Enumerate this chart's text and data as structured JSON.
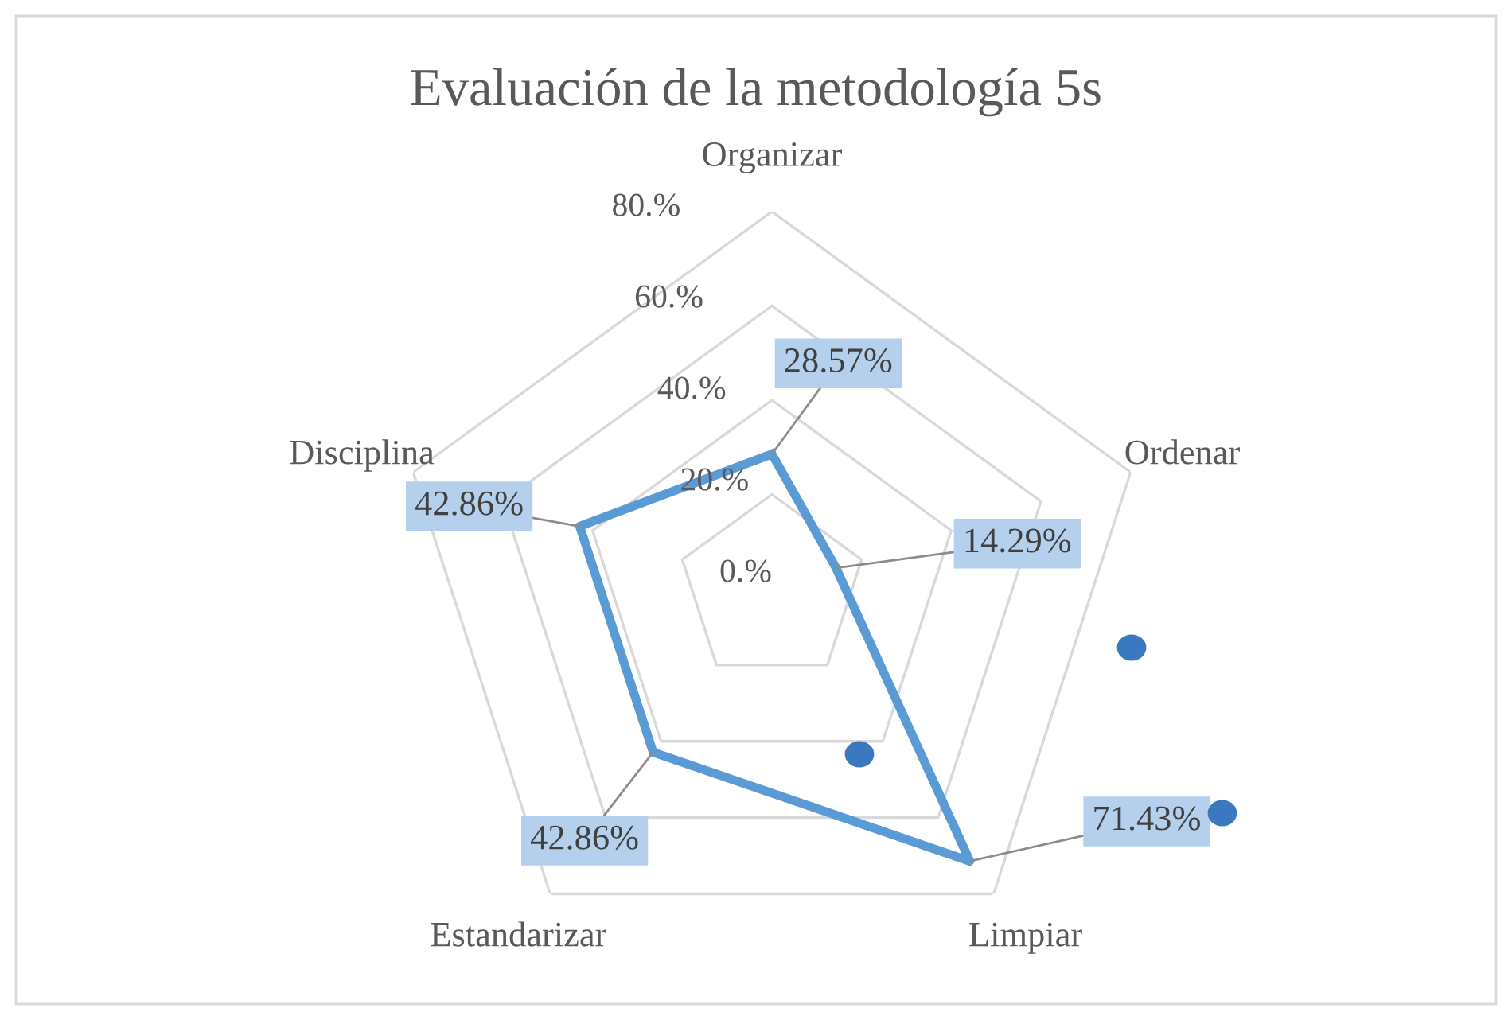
{
  "chart_data": {
    "type": "radar",
    "title": "Evaluación de la metodología 5s",
    "categories": [
      "Organizar",
      "Ordenar",
      "Limpiar",
      "Estandarizar",
      "Disciplina"
    ],
    "series": [
      {
        "color": "#5b9bd5",
        "values": [
          28.57,
          14.29,
          71.43,
          42.86,
          42.86
        ],
        "value_labels": [
          "28.57%",
          "14.29%",
          "71.43%",
          "42.86%",
          "42.86%"
        ]
      }
    ],
    "ylim": [
      0,
      80
    ],
    "yticks": [
      {
        "value": 0,
        "label": "0.%"
      },
      {
        "value": 20,
        "label": "20.%"
      },
      {
        "value": 40,
        "label": "40.%"
      },
      {
        "value": 60,
        "label": "60.%"
      },
      {
        "value": 80,
        "label": "80.%"
      }
    ],
    "grid": true,
    "marker": "none",
    "legend": false
  }
}
